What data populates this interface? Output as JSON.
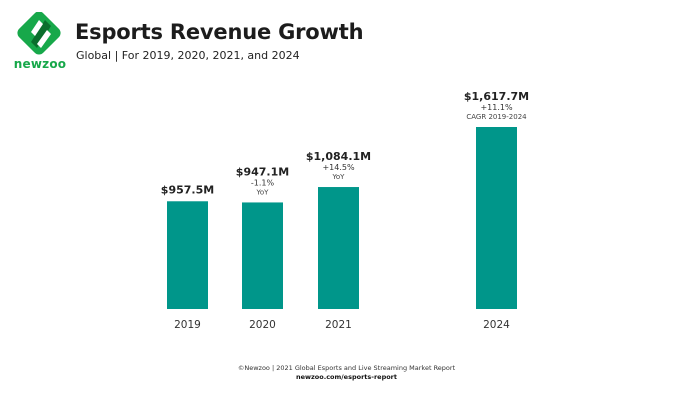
{
  "brand": {
    "name": "newzoo",
    "color": "#17a84a",
    "dark": "#0a6e2c"
  },
  "header": {
    "title": "Esports Revenue Growth",
    "subtitle": "Global | For 2019, 2020, 2021, and 2024"
  },
  "chart_data": {
    "type": "bar",
    "title": "Esports Revenue Growth",
    "subtitle": "Global | For 2019, 2020, 2021, and 2024",
    "xlabel": "",
    "ylabel": "",
    "unit": "USD millions",
    "categories": [
      "2019",
      "2020",
      "2021",
      "2024"
    ],
    "values": [
      957.5,
      947.1,
      1084.1,
      1617.7
    ],
    "value_labels": [
      "$957.5M",
      "$947.1M",
      "$1,084.1M",
      "$1,617.7M"
    ],
    "change_labels": [
      "",
      "-1.1%",
      "+14.5%",
      "+11.1%"
    ],
    "change_notes": [
      "",
      "YoY",
      "YoY",
      "CAGR 2019-2024"
    ],
    "bar_color": "#00968a",
    "grid": false,
    "legend": "none",
    "ylim": [
      0,
      1617.7
    ]
  },
  "footer": {
    "copyright": "©Newzoo | 2021 Global Esports and Live Streaming Market Report",
    "link": "newzoo.com/esports-report"
  }
}
